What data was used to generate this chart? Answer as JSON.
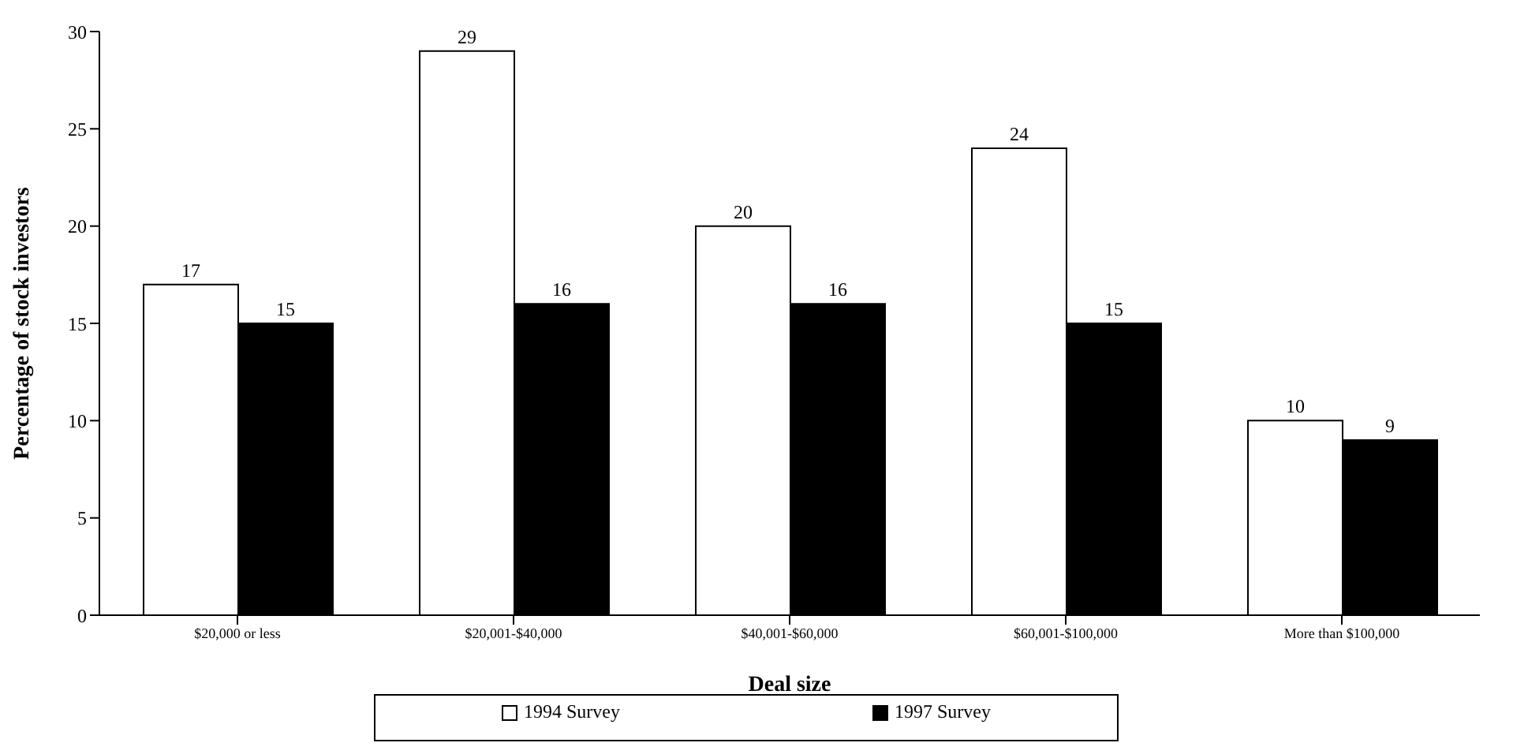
{
  "chart_data": {
    "type": "bar",
    "xlabel": "Deal size",
    "ylabel": "Percentage of stock investors",
    "categories": [
      "$20,000 or less",
      "$20,001-$40,000",
      "$40,001-$60,000",
      "$60,001-$100,000",
      "More than $100,000"
    ],
    "series": [
      {
        "name": "1994 Survey",
        "color": "#ffffff",
        "values": [
          17,
          29,
          20,
          24,
          10
        ]
      },
      {
        "name": "1997 Survey",
        "color": "#000000",
        "values": [
          15,
          16,
          16,
          15,
          9
        ]
      }
    ],
    "ylim": [
      0,
      30
    ],
    "yticks": [
      0,
      5,
      10,
      15,
      20,
      25,
      30
    ],
    "grid": false,
    "legend": "bottom",
    "data_labels": true
  }
}
